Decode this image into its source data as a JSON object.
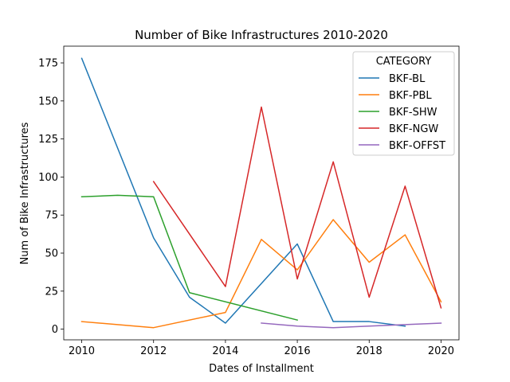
{
  "chart_data": {
    "type": "line",
    "title": "Number of Bike Infrastructures 2010-2020",
    "xlabel": "Dates of Installment",
    "ylabel": "Num of Bike Infrastructures",
    "xlim": [
      2009.5,
      2020.5
    ],
    "ylim": [
      -7,
      186
    ],
    "xticks": [
      2010,
      2012,
      2014,
      2016,
      2018,
      2020
    ],
    "yticks": [
      0,
      25,
      50,
      75,
      100,
      125,
      150,
      175
    ],
    "grid": false,
    "legend": {
      "title": "CATEGORY",
      "position": "top-right"
    },
    "series": [
      {
        "name": "BKF-BL",
        "color": "#1f77b4",
        "x": [
          2010,
          2012,
          2013,
          2014,
          2016,
          2017,
          2018,
          2019
        ],
        "y": [
          178,
          60,
          21,
          4,
          56,
          5,
          5,
          2
        ]
      },
      {
        "name": "BKF-PBL",
        "color": "#ff7f0e",
        "x": [
          2010,
          2012,
          2014,
          2015,
          2016,
          2017,
          2018,
          2019,
          2020
        ],
        "y": [
          5,
          1,
          11,
          59,
          39,
          72,
          44,
          62,
          18
        ]
      },
      {
        "name": "BKF-SHW",
        "color": "#2ca02c",
        "x": [
          2010,
          2011,
          2012,
          2013,
          2016
        ],
        "y": [
          87,
          88,
          87,
          24,
          6
        ]
      },
      {
        "name": "BKF-NGW",
        "color": "#d62728",
        "x": [
          2012,
          2014,
          2015,
          2016,
          2017,
          2018,
          2019,
          2020
        ],
        "y": [
          97,
          28,
          146,
          33,
          110,
          21,
          94,
          14
        ]
      },
      {
        "name": "BKF-OFFST",
        "color": "#9467bd",
        "x": [
          2015,
          2016,
          2017,
          2018,
          2019,
          2020
        ],
        "y": [
          4,
          2,
          1,
          2,
          3,
          4
        ]
      }
    ]
  }
}
